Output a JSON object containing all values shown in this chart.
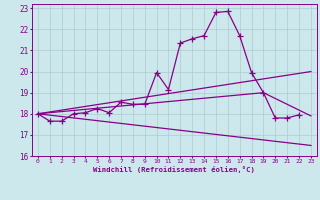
{
  "xlabel": "Windchill (Refroidissement éolien,°C)",
  "xlim": [
    -0.5,
    23.5
  ],
  "ylim": [
    16,
    23.2
  ],
  "bg_color": "#cce8ec",
  "line_color": "#880088",
  "grid_color": "#aacccc",
  "series_main": {
    "x": [
      0,
      1,
      2,
      3,
      4,
      5,
      6,
      7,
      8,
      9,
      10,
      11,
      12,
      13,
      14,
      15,
      16,
      17,
      18,
      19,
      20,
      21,
      22
    ],
    "y": [
      18.0,
      17.65,
      17.65,
      18.0,
      18.05,
      18.25,
      18.05,
      18.55,
      18.45,
      18.45,
      19.95,
      19.15,
      21.35,
      21.55,
      21.7,
      22.8,
      22.85,
      21.7,
      19.95,
      19.0,
      17.8,
      17.8,
      17.95
    ]
  },
  "series_upper": {
    "x": [
      0,
      23
    ],
    "y": [
      18.0,
      20.0
    ]
  },
  "series_middle": {
    "x": [
      0,
      19,
      23
    ],
    "y": [
      18.0,
      19.0,
      17.9
    ]
  },
  "series_lower": {
    "x": [
      0,
      23
    ],
    "y": [
      18.0,
      16.5
    ]
  },
  "xticks": [
    0,
    1,
    2,
    3,
    4,
    5,
    6,
    7,
    8,
    9,
    10,
    11,
    12,
    13,
    14,
    15,
    16,
    17,
    18,
    19,
    20,
    21,
    22,
    23
  ],
  "xtick_labels": [
    "0",
    "1",
    "2",
    "3",
    "4",
    "5",
    "6",
    "7",
    "8",
    "9",
    "10",
    "11",
    "12",
    "13",
    "14",
    "15",
    "16",
    "17",
    "18",
    "19",
    "20",
    "21",
    "22",
    "23"
  ],
  "yticks": [
    16,
    17,
    18,
    19,
    20,
    21,
    22,
    23
  ],
  "ytick_labels": [
    "16",
    "17",
    "18",
    "19",
    "20",
    "21",
    "22",
    "23"
  ]
}
